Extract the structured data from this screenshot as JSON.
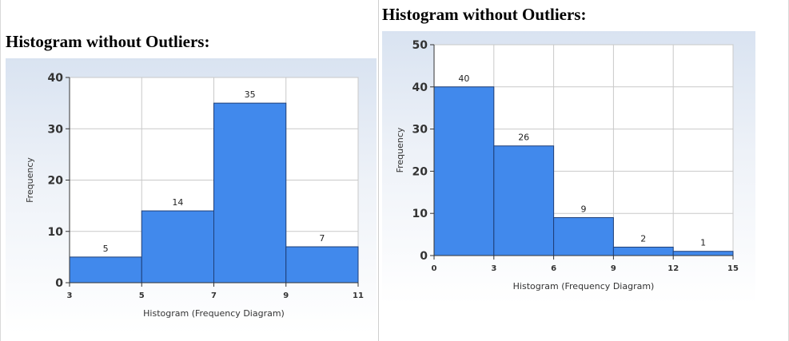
{
  "left": {
    "heading": "Histogram without Outliers:"
  },
  "right": {
    "heading": "Histogram without Outliers:"
  },
  "colors": {
    "bar": "#4189ec",
    "bar_edge": "#1f3f78",
    "grid": "#c9c9c9",
    "panel_top": "#d9e3f1"
  },
  "chart_data": [
    {
      "type": "bar",
      "bin_edges": [
        3,
        5,
        7,
        9,
        11
      ],
      "values": [
        5,
        14,
        35,
        7
      ],
      "data_labels": [
        "5",
        "14",
        "35",
        "7"
      ],
      "x_ticks": [
        "3",
        "5",
        "7",
        "9",
        "11"
      ],
      "y_ticks": [
        "0",
        "10",
        "20",
        "30",
        "40"
      ],
      "xlabel": "Histogram (Frequency Diagram)",
      "ylabel": "Frequency",
      "xlim": [
        3,
        11
      ],
      "ylim": [
        0,
        40
      ],
      "grid": true
    },
    {
      "type": "bar",
      "bin_edges": [
        0,
        3,
        6,
        9,
        12,
        15
      ],
      "values": [
        40,
        26,
        9,
        2,
        1
      ],
      "data_labels": [
        "40",
        "26",
        "9",
        "2",
        "1"
      ],
      "x_ticks": [
        "0",
        "3",
        "6",
        "9",
        "12",
        "15"
      ],
      "y_ticks": [
        "0",
        "10",
        "20",
        "30",
        "40",
        "50"
      ],
      "xlabel": "Histogram (Frequency Diagram)",
      "ylabel": "Frequency",
      "xlim": [
        0,
        15
      ],
      "ylim": [
        0,
        50
      ],
      "grid": true
    }
  ]
}
